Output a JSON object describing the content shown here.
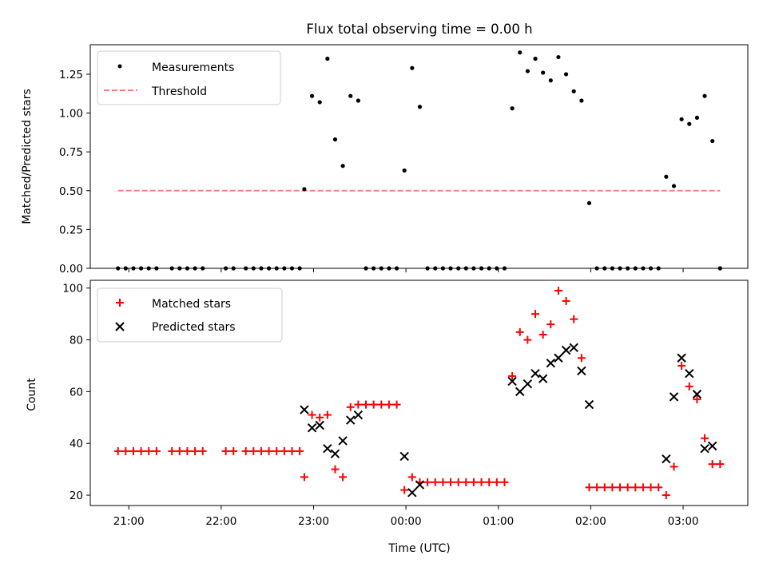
{
  "chart_data": [
    {
      "type": "scatter",
      "title": "Flux total observing time = 0.00 h",
      "xlabel": "",
      "ylabel": "Matched/Predicted stars",
      "xlim": [
        "2023-01-01T20:35",
        "2023-01-02T03:42"
      ],
      "ylim": [
        0,
        1.44
      ],
      "yticks": [
        "0.00",
        "0.25",
        "0.50",
        "0.75",
        "1.00",
        "1.25"
      ],
      "legend_position": "upper left",
      "series": [
        {
          "name": "Measurements",
          "marker": "dot",
          "color": "#000000",
          "points": [
            {
              "t": "2023-01-01T20:53",
              "y": 0
            },
            {
              "t": "2023-01-01T20:58",
              "y": 0
            },
            {
              "t": "2023-01-01T21:03",
              "y": 0
            },
            {
              "t": "2023-01-01T21:08",
              "y": 0
            },
            {
              "t": "2023-01-01T21:13",
              "y": 0
            },
            {
              "t": "2023-01-01T21:18",
              "y": 0
            },
            {
              "t": "2023-01-01T21:28",
              "y": 0
            },
            {
              "t": "2023-01-01T21:33",
              "y": 0
            },
            {
              "t": "2023-01-01T21:38",
              "y": 0
            },
            {
              "t": "2023-01-01T21:43",
              "y": 0
            },
            {
              "t": "2023-01-01T21:48",
              "y": 0
            },
            {
              "t": "2023-01-01T22:03",
              "y": 0
            },
            {
              "t": "2023-01-01T22:08",
              "y": 0
            },
            {
              "t": "2023-01-01T22:16",
              "y": 0
            },
            {
              "t": "2023-01-01T22:21",
              "y": 0
            },
            {
              "t": "2023-01-01T22:26",
              "y": 0
            },
            {
              "t": "2023-01-01T22:31",
              "y": 0
            },
            {
              "t": "2023-01-01T22:36",
              "y": 0
            },
            {
              "t": "2023-01-01T22:41",
              "y": 0
            },
            {
              "t": "2023-01-01T22:46",
              "y": 0
            },
            {
              "t": "2023-01-01T22:51",
              "y": 0
            },
            {
              "t": "2023-01-01T22:54",
              "y": 0.51
            },
            {
              "t": "2023-01-01T22:59",
              "y": 1.11
            },
            {
              "t": "2023-01-01T23:04",
              "y": 1.07
            },
            {
              "t": "2023-01-01T23:09",
              "y": 1.35
            },
            {
              "t": "2023-01-01T23:14",
              "y": 0.83
            },
            {
              "t": "2023-01-01T23:19",
              "y": 0.66
            },
            {
              "t": "2023-01-01T23:24",
              "y": 1.11
            },
            {
              "t": "2023-01-01T23:29",
              "y": 1.08
            },
            {
              "t": "2023-01-01T23:34",
              "y": 0
            },
            {
              "t": "2023-01-01T23:39",
              "y": 0
            },
            {
              "t": "2023-01-01T23:44",
              "y": 0
            },
            {
              "t": "2023-01-01T23:49",
              "y": 0
            },
            {
              "t": "2023-01-01T23:54",
              "y": 0
            },
            {
              "t": "2023-01-01T23:59",
              "y": 0.63
            },
            {
              "t": "2023-01-02T00:04",
              "y": 1.29
            },
            {
              "t": "2023-01-02T00:09",
              "y": 1.04
            },
            {
              "t": "2023-01-02T00:14",
              "y": 0
            },
            {
              "t": "2023-01-02T00:19",
              "y": 0
            },
            {
              "t": "2023-01-02T00:24",
              "y": 0
            },
            {
              "t": "2023-01-02T00:29",
              "y": 0
            },
            {
              "t": "2023-01-02T00:34",
              "y": 0
            },
            {
              "t": "2023-01-02T00:39",
              "y": 0
            },
            {
              "t": "2023-01-02T00:44",
              "y": 0
            },
            {
              "t": "2023-01-02T00:49",
              "y": 0
            },
            {
              "t": "2023-01-02T00:54",
              "y": 0
            },
            {
              "t": "2023-01-02T00:59",
              "y": 0
            },
            {
              "t": "2023-01-02T01:04",
              "y": 0
            },
            {
              "t": "2023-01-02T01:09",
              "y": 1.03
            },
            {
              "t": "2023-01-02T01:14",
              "y": 1.39
            },
            {
              "t": "2023-01-02T01:19",
              "y": 1.27
            },
            {
              "t": "2023-01-02T01:24",
              "y": 1.35
            },
            {
              "t": "2023-01-02T01:29",
              "y": 1.26
            },
            {
              "t": "2023-01-02T01:34",
              "y": 1.21
            },
            {
              "t": "2023-01-02T01:39",
              "y": 1.36
            },
            {
              "t": "2023-01-02T01:44",
              "y": 1.25
            },
            {
              "t": "2023-01-02T01:49",
              "y": 1.14
            },
            {
              "t": "2023-01-02T01:54",
              "y": 1.08
            },
            {
              "t": "2023-01-02T01:59",
              "y": 0.42
            },
            {
              "t": "2023-01-02T02:04",
              "y": 0
            },
            {
              "t": "2023-01-02T02:09",
              "y": 0
            },
            {
              "t": "2023-01-02T02:14",
              "y": 0
            },
            {
              "t": "2023-01-02T02:19",
              "y": 0
            },
            {
              "t": "2023-01-02T02:24",
              "y": 0
            },
            {
              "t": "2023-01-02T02:29",
              "y": 0
            },
            {
              "t": "2023-01-02T02:34",
              "y": 0
            },
            {
              "t": "2023-01-02T02:39",
              "y": 0
            },
            {
              "t": "2023-01-02T02:44",
              "y": 0
            },
            {
              "t": "2023-01-02T02:49",
              "y": 0.59
            },
            {
              "t": "2023-01-02T02:54",
              "y": 0.53
            },
            {
              "t": "2023-01-02T02:59",
              "y": 0.96
            },
            {
              "t": "2023-01-02T03:04",
              "y": 0.93
            },
            {
              "t": "2023-01-02T03:09",
              "y": 0.97
            },
            {
              "t": "2023-01-02T03:14",
              "y": 1.11
            },
            {
              "t": "2023-01-02T03:19",
              "y": 0.82
            },
            {
              "t": "2023-01-02T03:24",
              "y": 0
            }
          ]
        },
        {
          "name": "Threshold",
          "line": "dashed",
          "color": "#ff7f7f",
          "points": [
            {
              "t": "2023-01-01T20:53",
              "y": 0.5
            },
            {
              "t": "2023-01-02T03:24",
              "y": 0.5
            }
          ]
        }
      ]
    },
    {
      "type": "scatter",
      "title": "",
      "xlabel": "Time (UTC)",
      "ylabel": "Count",
      "xlim": [
        "2023-01-01T20:35",
        "2023-01-02T03:42"
      ],
      "ylim": [
        16,
        103
      ],
      "yticks": [
        "20",
        "40",
        "60",
        "80",
        "100"
      ],
      "xticks": [
        {
          "t": "2023-01-01T21:00",
          "label": "21:00"
        },
        {
          "t": "2023-01-01T22:00",
          "label": "22:00"
        },
        {
          "t": "2023-01-01T23:00",
          "label": "23:00"
        },
        {
          "t": "2023-01-02T00:00",
          "label": "00:00"
        },
        {
          "t": "2023-01-02T01:00",
          "label": "01:00"
        },
        {
          "t": "2023-01-02T02:00",
          "label": "02:00"
        },
        {
          "t": "2023-01-02T03:00",
          "label": "03:00"
        }
      ],
      "legend_position": "upper left",
      "series": [
        {
          "name": "Matched stars",
          "marker": "plus",
          "color": "#ff0000",
          "points": [
            {
              "t": "2023-01-01T20:53",
              "y": 37
            },
            {
              "t": "2023-01-01T20:58",
              "y": 37
            },
            {
              "t": "2023-01-01T21:03",
              "y": 37
            },
            {
              "t": "2023-01-01T21:08",
              "y": 37
            },
            {
              "t": "2023-01-01T21:13",
              "y": 37
            },
            {
              "t": "2023-01-01T21:18",
              "y": 37
            },
            {
              "t": "2023-01-01T21:28",
              "y": 37
            },
            {
              "t": "2023-01-01T21:33",
              "y": 37
            },
            {
              "t": "2023-01-01T21:38",
              "y": 37
            },
            {
              "t": "2023-01-01T21:43",
              "y": 37
            },
            {
              "t": "2023-01-01T21:48",
              "y": 37
            },
            {
              "t": "2023-01-01T22:03",
              "y": 37
            },
            {
              "t": "2023-01-01T22:08",
              "y": 37
            },
            {
              "t": "2023-01-01T22:16",
              "y": 37
            },
            {
              "t": "2023-01-01T22:21",
              "y": 37
            },
            {
              "t": "2023-01-01T22:26",
              "y": 37
            },
            {
              "t": "2023-01-01T22:31",
              "y": 37
            },
            {
              "t": "2023-01-01T22:36",
              "y": 37
            },
            {
              "t": "2023-01-01T22:41",
              "y": 37
            },
            {
              "t": "2023-01-01T22:46",
              "y": 37
            },
            {
              "t": "2023-01-01T22:51",
              "y": 37
            },
            {
              "t": "2023-01-01T22:54",
              "y": 27
            },
            {
              "t": "2023-01-01T22:59",
              "y": 51
            },
            {
              "t": "2023-01-01T23:04",
              "y": 50
            },
            {
              "t": "2023-01-01T23:09",
              "y": 51
            },
            {
              "t": "2023-01-01T23:14",
              "y": 30
            },
            {
              "t": "2023-01-01T23:19",
              "y": 27
            },
            {
              "t": "2023-01-01T23:24",
              "y": 54
            },
            {
              "t": "2023-01-01T23:29",
              "y": 55
            },
            {
              "t": "2023-01-01T23:34",
              "y": 55
            },
            {
              "t": "2023-01-01T23:39",
              "y": 55
            },
            {
              "t": "2023-01-01T23:44",
              "y": 55
            },
            {
              "t": "2023-01-01T23:49",
              "y": 55
            },
            {
              "t": "2023-01-01T23:54",
              "y": 55
            },
            {
              "t": "2023-01-01T23:59",
              "y": 22
            },
            {
              "t": "2023-01-02T00:04",
              "y": 27
            },
            {
              "t": "2023-01-02T00:09",
              "y": 25
            },
            {
              "t": "2023-01-02T00:14",
              "y": 25
            },
            {
              "t": "2023-01-02T00:19",
              "y": 25
            },
            {
              "t": "2023-01-02T00:24",
              "y": 25
            },
            {
              "t": "2023-01-02T00:29",
              "y": 25
            },
            {
              "t": "2023-01-02T00:34",
              "y": 25
            },
            {
              "t": "2023-01-02T00:39",
              "y": 25
            },
            {
              "t": "2023-01-02T00:44",
              "y": 25
            },
            {
              "t": "2023-01-02T00:49",
              "y": 25
            },
            {
              "t": "2023-01-02T00:54",
              "y": 25
            },
            {
              "t": "2023-01-02T00:59",
              "y": 25
            },
            {
              "t": "2023-01-02T01:04",
              "y": 25
            },
            {
              "t": "2023-01-02T01:09",
              "y": 66
            },
            {
              "t": "2023-01-02T01:14",
              "y": 83
            },
            {
              "t": "2023-01-02T01:19",
              "y": 80
            },
            {
              "t": "2023-01-02T01:24",
              "y": 90
            },
            {
              "t": "2023-01-02T01:29",
              "y": 82
            },
            {
              "t": "2023-01-02T01:34",
              "y": 86
            },
            {
              "t": "2023-01-02T01:39",
              "y": 99
            },
            {
              "t": "2023-01-02T01:44",
              "y": 95
            },
            {
              "t": "2023-01-02T01:49",
              "y": 88
            },
            {
              "t": "2023-01-02T01:54",
              "y": 73
            },
            {
              "t": "2023-01-02T01:59",
              "y": 23
            },
            {
              "t": "2023-01-02T02:04",
              "y": 23
            },
            {
              "t": "2023-01-02T02:09",
              "y": 23
            },
            {
              "t": "2023-01-02T02:14",
              "y": 23
            },
            {
              "t": "2023-01-02T02:19",
              "y": 23
            },
            {
              "t": "2023-01-02T02:24",
              "y": 23
            },
            {
              "t": "2023-01-02T02:29",
              "y": 23
            },
            {
              "t": "2023-01-02T02:34",
              "y": 23
            },
            {
              "t": "2023-01-02T02:39",
              "y": 23
            },
            {
              "t": "2023-01-02T02:44",
              "y": 23
            },
            {
              "t": "2023-01-02T02:49",
              "y": 20
            },
            {
              "t": "2023-01-02T02:54",
              "y": 31
            },
            {
              "t": "2023-01-02T02:59",
              "y": 70
            },
            {
              "t": "2023-01-02T03:04",
              "y": 62
            },
            {
              "t": "2023-01-02T03:09",
              "y": 57
            },
            {
              "t": "2023-01-02T03:14",
              "y": 42
            },
            {
              "t": "2023-01-02T03:19",
              "y": 32
            },
            {
              "t": "2023-01-02T03:24",
              "y": 32
            }
          ]
        },
        {
          "name": "Predicted stars",
          "marker": "x",
          "color": "#000000",
          "points": [
            {
              "t": "2023-01-01T22:54",
              "y": 53
            },
            {
              "t": "2023-01-01T22:59",
              "y": 46
            },
            {
              "t": "2023-01-01T23:04",
              "y": 47
            },
            {
              "t": "2023-01-01T23:09",
              "y": 38
            },
            {
              "t": "2023-01-01T23:14",
              "y": 36
            },
            {
              "t": "2023-01-01T23:19",
              "y": 41
            },
            {
              "t": "2023-01-01T23:24",
              "y": 49
            },
            {
              "t": "2023-01-01T23:29",
              "y": 51
            },
            {
              "t": "2023-01-01T23:59",
              "y": 35
            },
            {
              "t": "2023-01-02T00:04",
              "y": 21
            },
            {
              "t": "2023-01-02T00:09",
              "y": 24
            },
            {
              "t": "2023-01-02T01:09",
              "y": 64
            },
            {
              "t": "2023-01-02T01:14",
              "y": 60
            },
            {
              "t": "2023-01-02T01:19",
              "y": 63
            },
            {
              "t": "2023-01-02T01:24",
              "y": 67
            },
            {
              "t": "2023-01-02T01:29",
              "y": 65
            },
            {
              "t": "2023-01-02T01:34",
              "y": 71
            },
            {
              "t": "2023-01-02T01:39",
              "y": 73
            },
            {
              "t": "2023-01-02T01:44",
              "y": 76
            },
            {
              "t": "2023-01-02T01:49",
              "y": 77
            },
            {
              "t": "2023-01-02T01:54",
              "y": 68
            },
            {
              "t": "2023-01-02T01:59",
              "y": 55
            },
            {
              "t": "2023-01-02T02:49",
              "y": 34
            },
            {
              "t": "2023-01-02T02:54",
              "y": 58
            },
            {
              "t": "2023-01-02T02:59",
              "y": 73
            },
            {
              "t": "2023-01-02T03:04",
              "y": 67
            },
            {
              "t": "2023-01-02T03:09",
              "y": 59
            },
            {
              "t": "2023-01-02T03:14",
              "y": 38
            },
            {
              "t": "2023-01-02T03:19",
              "y": 39
            }
          ]
        }
      ]
    }
  ]
}
